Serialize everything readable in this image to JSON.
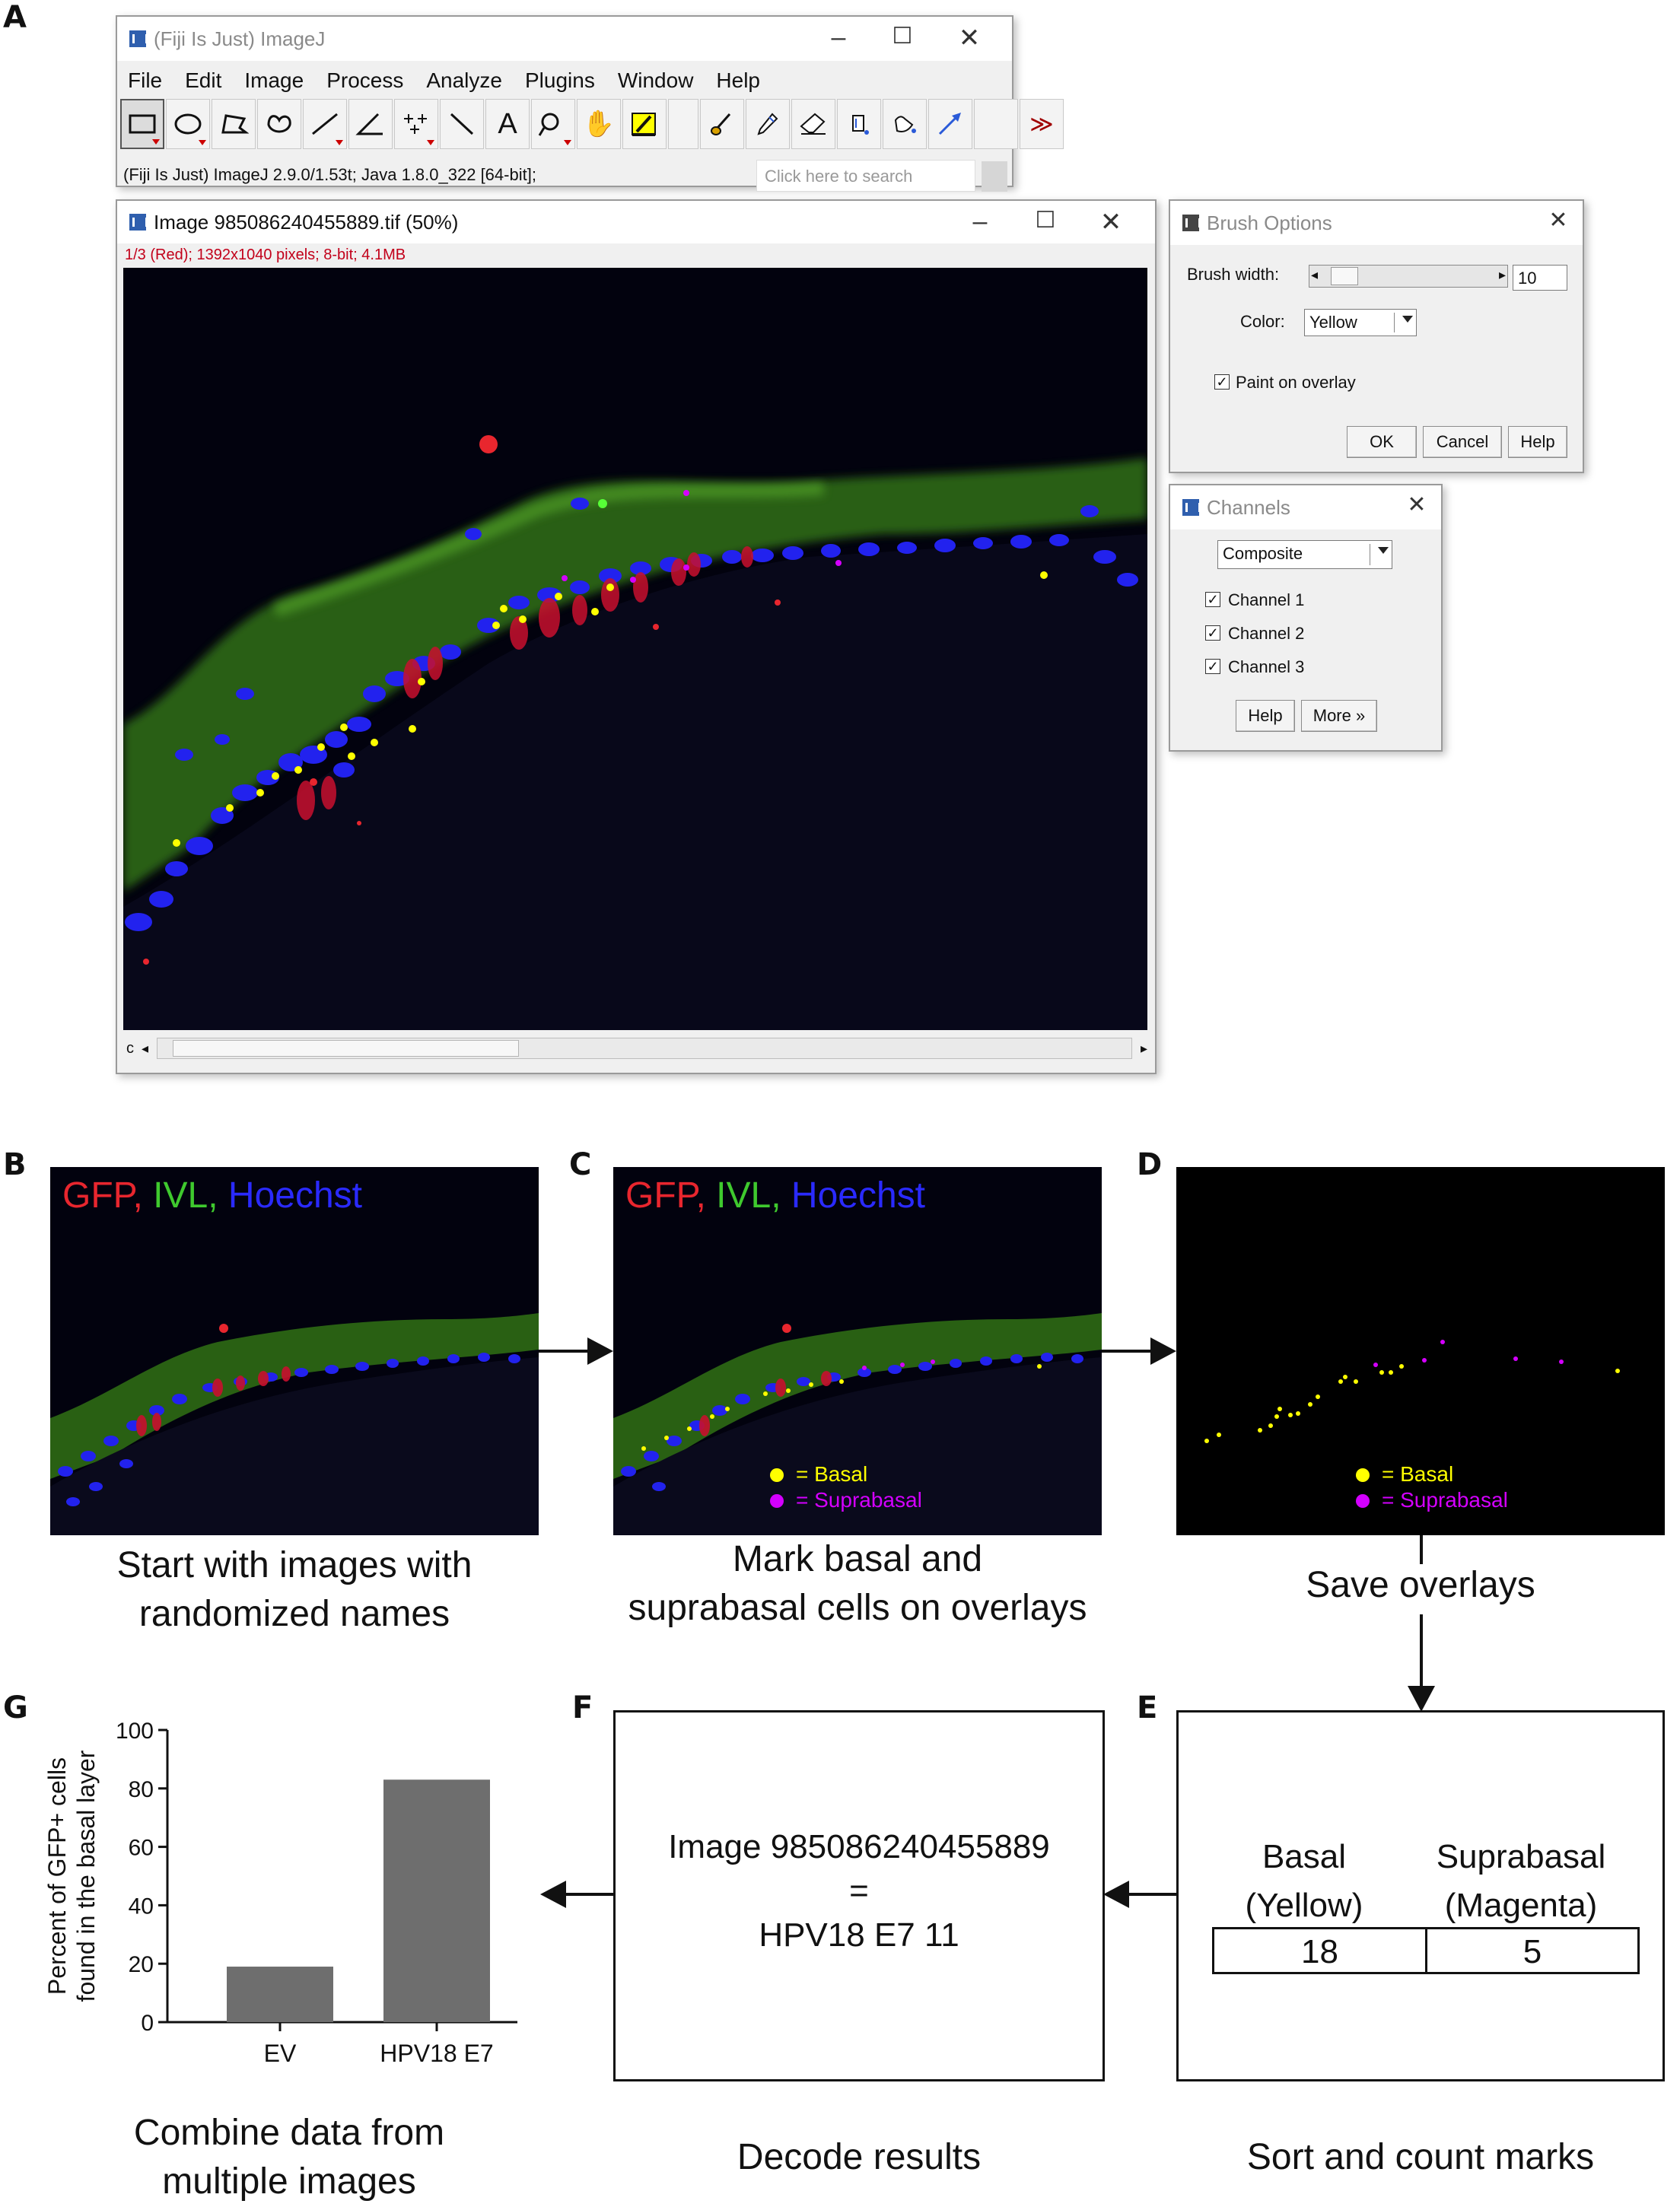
{
  "panels": {
    "a": "A",
    "b": "B",
    "c": "C",
    "d": "D",
    "e": "E",
    "f": "F",
    "g": "G"
  },
  "imagej": {
    "title": "(Fiji Is Just) ImageJ",
    "menu": [
      "File",
      "Edit",
      "Image",
      "Process",
      "Analyze",
      "Plugins",
      "Window",
      "Help"
    ],
    "status": "(Fiji Is Just) ImageJ 2.9.0/1.53t; Java 1.8.0_322 [64-bit];",
    "search_placeholder": "Click here to search",
    "tools": [
      "rectangle-tool-icon",
      "oval-tool-icon",
      "polygon-tool-icon",
      "freehand-tool-icon",
      "line-tool-icon",
      "angle-tool-icon",
      "point-tool-icon",
      "wand-tool-icon",
      "text-tool-icon",
      "magnifier-tool-icon",
      "hand-tool-icon",
      "color-picker-icon",
      "brush-tool-icon",
      "pencil-tool-icon",
      "eraser-tool-icon",
      "flood-fill-icon",
      "bucket-icon",
      "arrow-tool-icon",
      "blank-tool-icon",
      "more-tools-icon"
    ]
  },
  "image_window": {
    "title": "Image 985086240455889.tif (50%)",
    "info": "1/3 (Red); 1392x1040 pixels; 8-bit; 4.1MB",
    "channel_label": "c"
  },
  "brush": {
    "title": "Brush Options",
    "width_label": "Brush width:",
    "width_value": "10",
    "color_label": "Color:",
    "color_value": "Yellow",
    "paint_label": "Paint on overlay",
    "ok": "OK",
    "cancel": "Cancel",
    "help": "Help"
  },
  "channels": {
    "title": "Channels",
    "mode": "Composite",
    "ch1": "Channel 1",
    "ch2": "Channel 2",
    "ch3": "Channel 3",
    "help": "Help",
    "more": "More »"
  },
  "flow": {
    "stain": {
      "gfp": "GFP,",
      "ivl": "IVL,",
      "hoechst": "Hoechst"
    },
    "legend": {
      "basal": "= Basal",
      "suprabasal": "= Suprabasal"
    },
    "colors": {
      "basal": "#ffff00",
      "suprabasal": "#d400ff",
      "gfp": "#e8262e",
      "ivl": "#3fc92e",
      "hoechst": "#2a2aff"
    },
    "caption_b": [
      "Start with images with",
      "randomized names"
    ],
    "caption_c": [
      "Mark basal and",
      "suprabasal cells on overlays"
    ],
    "caption_d": "Save overlays",
    "caption_e": "Sort and count marks",
    "caption_f": "Decode results",
    "caption_g": [
      "Combine data from",
      "multiple images"
    ],
    "table_e": {
      "basal_header": [
        "Basal",
        "(Yellow)"
      ],
      "supra_header": [
        "Suprabasal",
        "(Magenta)"
      ],
      "basal_count": "18",
      "supra_count": "5"
    },
    "decode": [
      "Image 985086240455889",
      "=",
      "HPV18 E7 11"
    ]
  },
  "chart_data": {
    "type": "bar",
    "categories": [
      "EV",
      "HPV18 E7"
    ],
    "values": [
      19,
      83
    ],
    "ylabel": [
      "Percent of GFP+ cells",
      "found in the basal layer"
    ],
    "ylim": [
      0,
      100
    ],
    "yticks": [
      "0",
      "20",
      "40",
      "60",
      "80",
      "100"
    ],
    "bar_color": "#6e6e6e"
  }
}
